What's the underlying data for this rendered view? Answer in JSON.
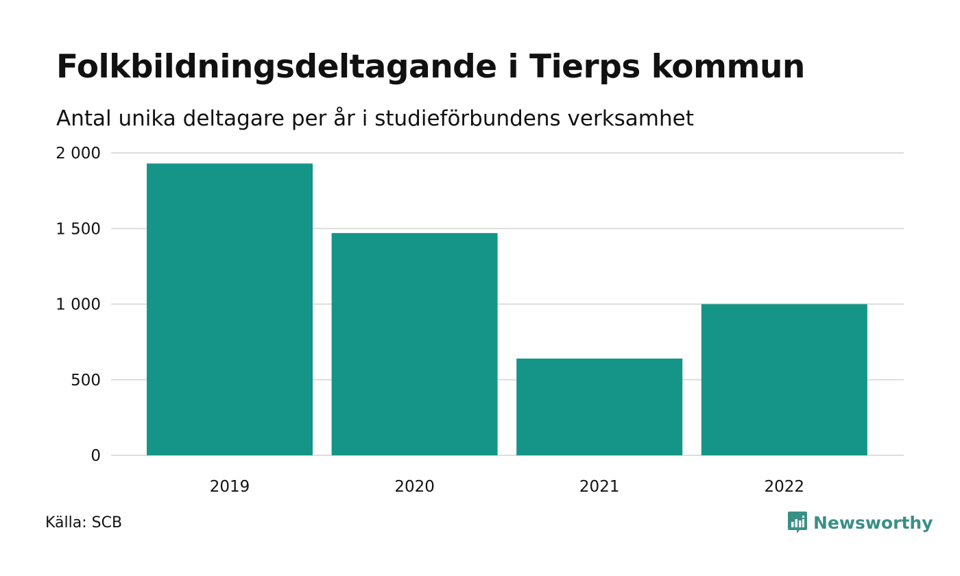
{
  "header": {
    "title": "Folkbildningsdeltagande i Tierps kommun",
    "subtitle": "Antal unika deltagare per år i studieförbundens verksamhet"
  },
  "footer": {
    "source": "Källa: SCB",
    "brand_name": "Newsworthy",
    "brand_icon": "newsworthy-logo-icon"
  },
  "colors": {
    "bar": "#149588",
    "grid": "#dddddd",
    "brand": "#3a8f85"
  },
  "chart_data": {
    "type": "bar",
    "title": "Folkbildningsdeltagande i Tierps kommun",
    "subtitle": "Antal unika deltagare per år i studieförbundens verksamhet",
    "categories": [
      "2019",
      "2020",
      "2021",
      "2022"
    ],
    "values": [
      1930,
      1470,
      640,
      1000
    ],
    "ylim": [
      0,
      2000
    ],
    "yticks": [
      0,
      500,
      1000,
      1500,
      2000
    ],
    "ytick_labels": [
      "0",
      "500",
      "1 000",
      "1 500",
      "2 000"
    ],
    "grid": true,
    "legend": "none"
  }
}
